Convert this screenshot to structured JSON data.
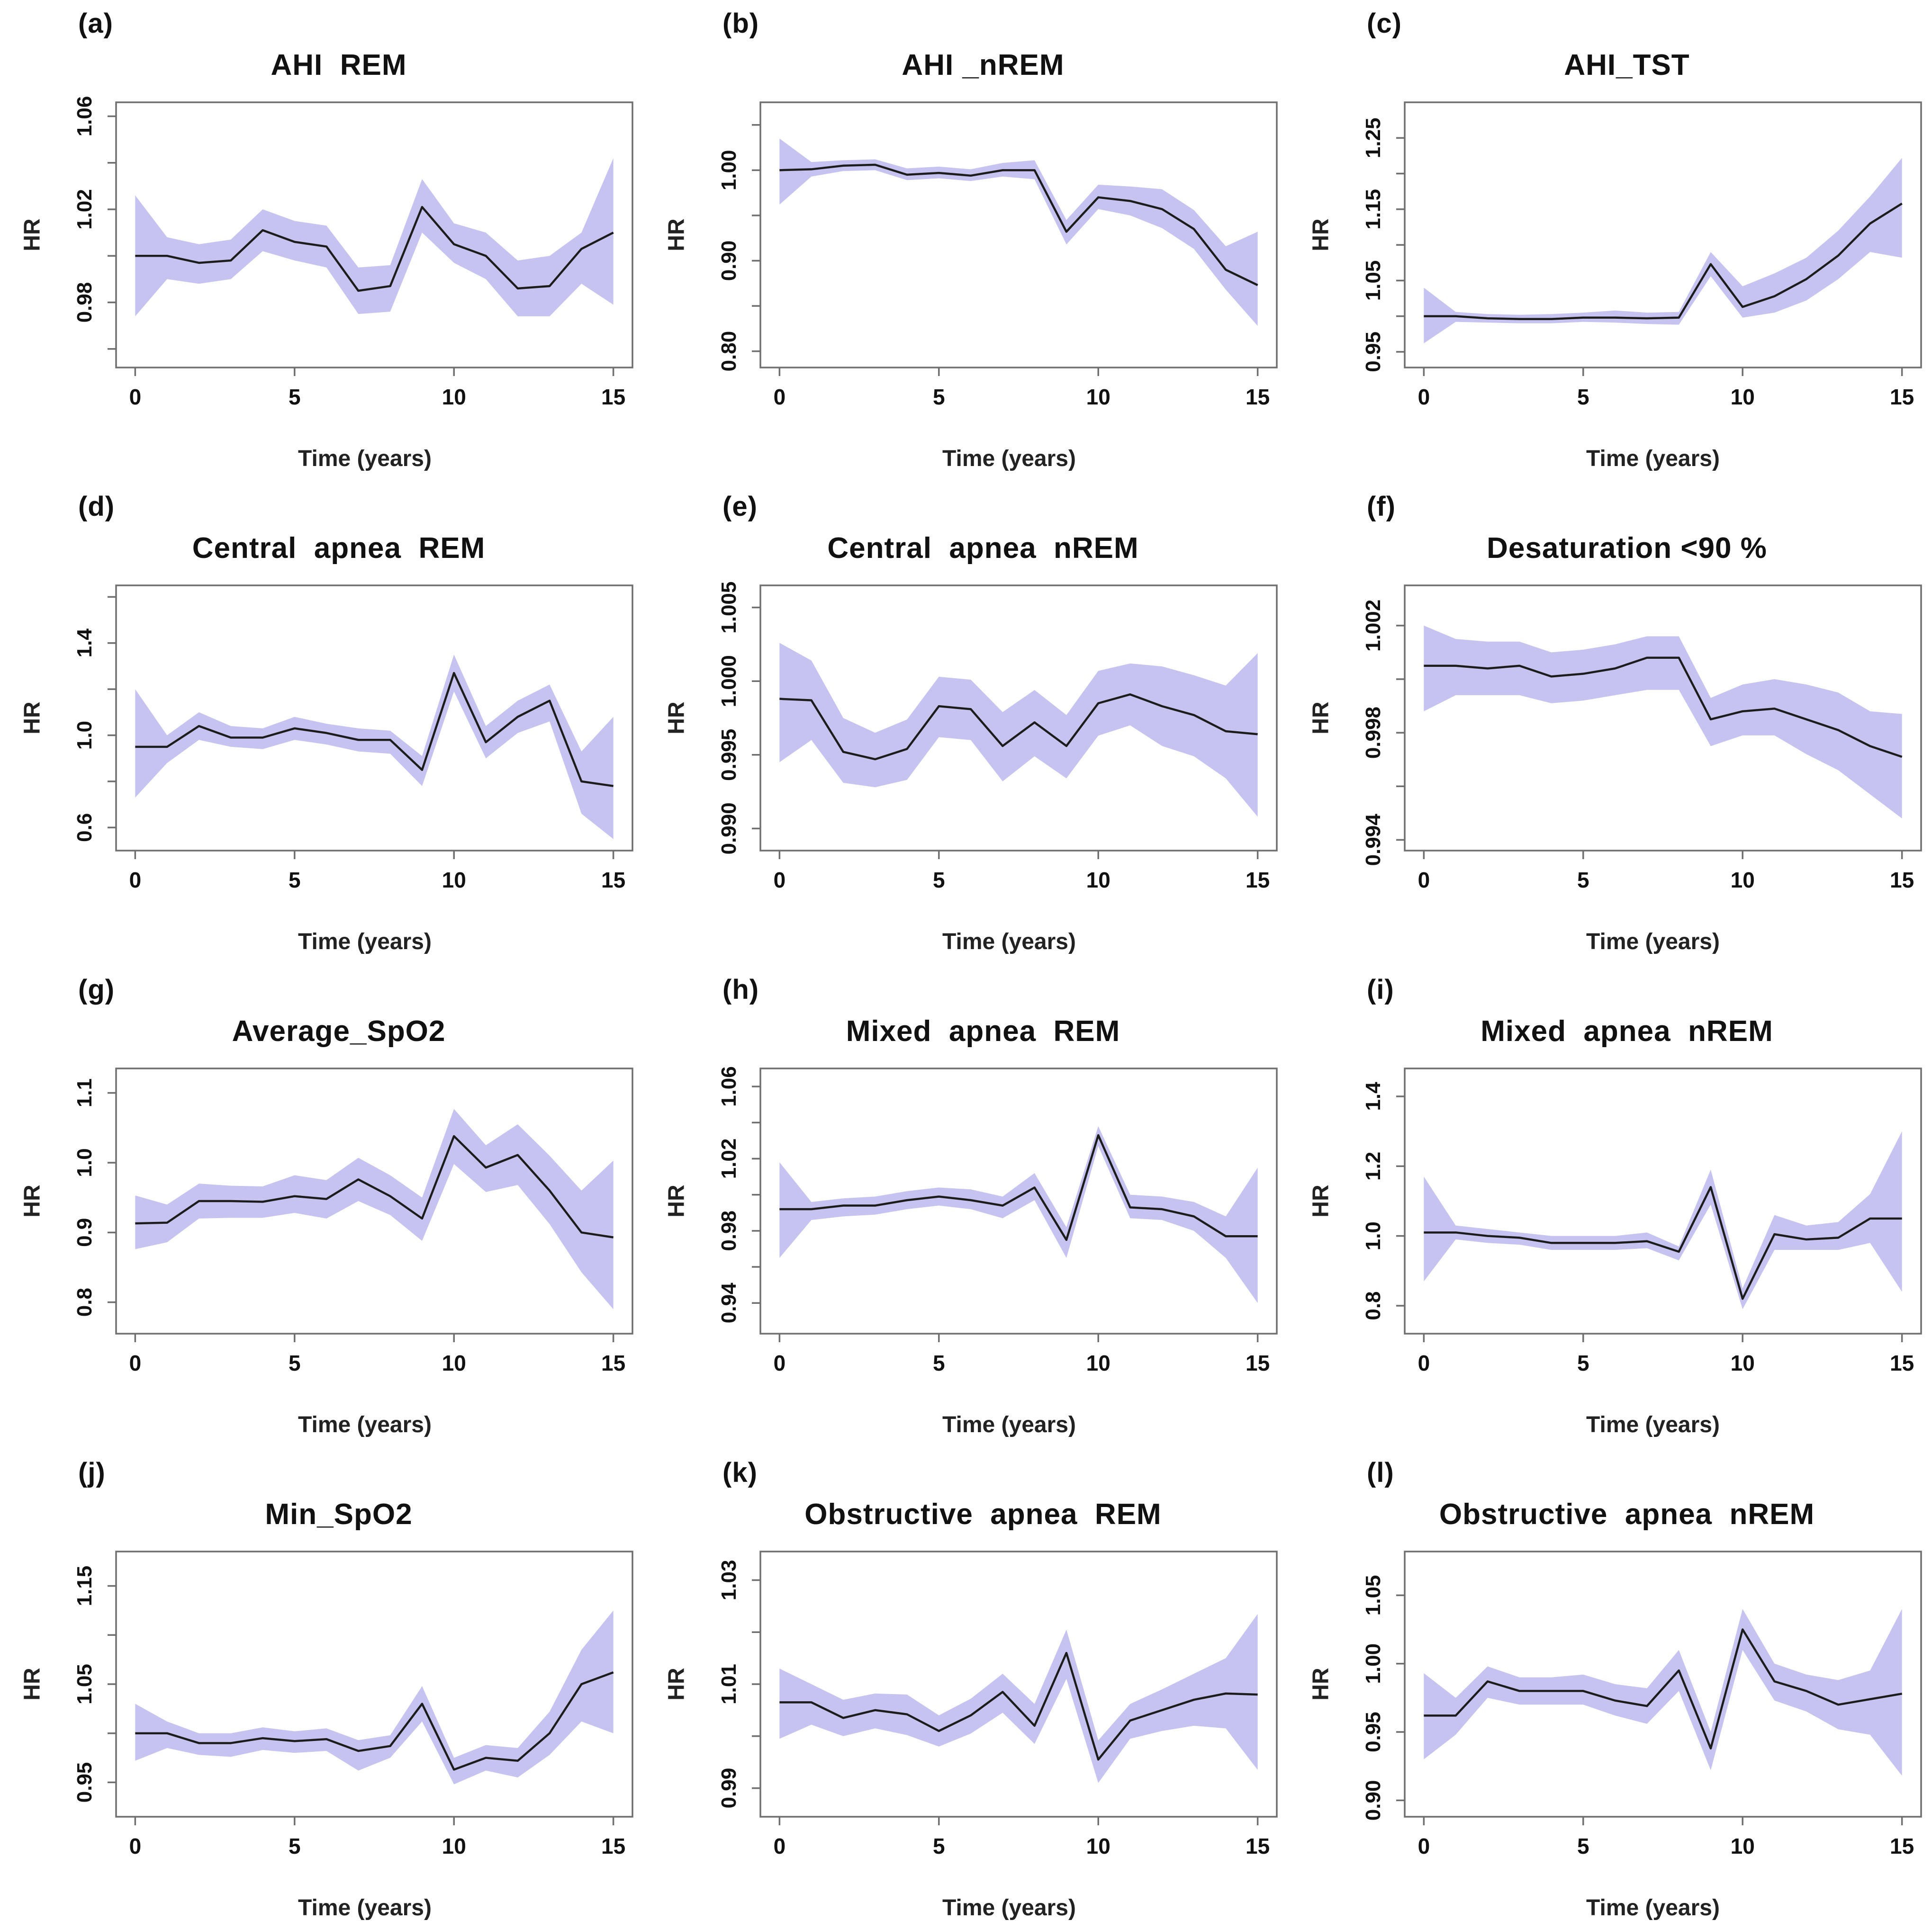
{
  "page": {
    "background": "#ffffff"
  },
  "colors": {
    "band": "#c6c3f0",
    "line": "#1c1c1c",
    "frame": "#6f6f6f",
    "tick_text": "#111111"
  },
  "axes_common": {
    "xlim": [
      -0.6,
      15.6
    ],
    "xticks": [
      0,
      5,
      10,
      15
    ],
    "xtick_labels": [
      "0",
      "5",
      "10",
      "15"
    ]
  },
  "chart_data": [
    {
      "type": "line",
      "panel_label": "(a)",
      "title": "AHI  REM",
      "xlabel": "Time (years)",
      "ylabel": "HR",
      "legend": "none",
      "grid": false,
      "x": [
        0,
        1,
        2,
        3,
        4,
        5,
        6,
        7,
        8,
        9,
        10,
        11,
        12,
        13,
        14,
        15
      ],
      "y": [
        1.0,
        1.0,
        0.997,
        0.998,
        1.011,
        1.006,
        1.004,
        0.985,
        0.987,
        1.021,
        1.005,
        1.0,
        0.986,
        0.987,
        1.003,
        1.01
      ],
      "upper": [
        1.026,
        1.008,
        1.005,
        1.007,
        1.02,
        1.015,
        1.013,
        0.995,
        0.996,
        1.033,
        1.014,
        1.01,
        0.998,
        1.0,
        1.01,
        1.042
      ],
      "lower": [
        0.974,
        0.99,
        0.988,
        0.99,
        1.002,
        0.998,
        0.995,
        0.975,
        0.976,
        1.01,
        0.997,
        0.99,
        0.974,
        0.974,
        0.988,
        0.979
      ],
      "ylim": [
        0.952,
        1.066
      ],
      "ytick_values": [
        0.98,
        1.02,
        1.06
      ],
      "ytick_labels": [
        "0.98",
        "1.02",
        "1.06"
      ],
      "yminor": [
        0.96,
        1.0,
        1.04
      ]
    },
    {
      "type": "line",
      "panel_label": "(b)",
      "title": "AHI _nREM",
      "xlabel": "Time (years)",
      "ylabel": "HR",
      "legend": "none",
      "grid": false,
      "x": [
        0,
        1,
        2,
        3,
        4,
        5,
        6,
        7,
        8,
        9,
        10,
        11,
        12,
        13,
        14,
        15
      ],
      "y": [
        1.0,
        1.001,
        1.005,
        1.006,
        0.995,
        0.997,
        0.994,
        1.0,
        1.0,
        0.932,
        0.97,
        0.966,
        0.957,
        0.935,
        0.89,
        0.873
      ],
      "upper": [
        1.035,
        1.009,
        1.011,
        1.012,
        1.002,
        1.004,
        1.001,
        1.008,
        1.011,
        0.945,
        0.984,
        0.982,
        0.979,
        0.956,
        0.916,
        0.932
      ],
      "lower": [
        0.962,
        0.993,
        0.999,
        1.0,
        0.989,
        0.991,
        0.988,
        0.993,
        0.99,
        0.918,
        0.957,
        0.95,
        0.936,
        0.913,
        0.868,
        0.828
      ],
      "ylim": [
        0.782,
        1.075
      ],
      "ytick_values": [
        0.8,
        0.9,
        1.0
      ],
      "ytick_labels": [
        "0.80",
        "0.90",
        "1.00"
      ],
      "yminor": [
        0.85,
        0.95,
        1.05
      ]
    },
    {
      "type": "line",
      "panel_label": "(c)",
      "title": "AHI_TST",
      "xlabel": "Time (years)",
      "ylabel": "HR",
      "legend": "none",
      "grid": false,
      "x": [
        0,
        1,
        2,
        3,
        4,
        5,
        6,
        7,
        8,
        9,
        10,
        11,
        12,
        13,
        14,
        15
      ],
      "y": [
        1.0,
        1.0,
        0.997,
        0.996,
        0.996,
        0.998,
        0.998,
        0.997,
        0.998,
        1.073,
        1.013,
        1.028,
        1.052,
        1.085,
        1.13,
        1.158
      ],
      "upper": [
        1.04,
        1.006,
        1.003,
        1.002,
        1.003,
        1.005,
        1.008,
        1.005,
        1.006,
        1.09,
        1.042,
        1.06,
        1.082,
        1.12,
        1.168,
        1.222
      ],
      "lower": [
        0.962,
        0.992,
        0.991,
        0.99,
        0.99,
        0.992,
        0.991,
        0.989,
        0.988,
        1.056,
        0.998,
        1.005,
        1.022,
        1.052,
        1.09,
        1.082
      ],
      "ylim": [
        0.928,
        1.3
      ],
      "ytick_values": [
        0.95,
        1.05,
        1.15,
        1.25
      ],
      "ytick_labels": [
        "0.95",
        "1.05",
        "1.15",
        "1.25"
      ],
      "yminor": [
        1.0,
        1.1,
        1.2
      ]
    },
    {
      "type": "line",
      "panel_label": "(d)",
      "title": "Central  apnea  REM",
      "xlabel": "Time (years)",
      "ylabel": "HR",
      "legend": "none",
      "grid": false,
      "x": [
        0,
        1,
        2,
        3,
        4,
        5,
        6,
        7,
        8,
        9,
        10,
        11,
        12,
        13,
        14,
        15
      ],
      "y": [
        0.95,
        0.95,
        1.04,
        0.99,
        0.99,
        1.03,
        1.01,
        0.98,
        0.98,
        0.85,
        1.27,
        0.97,
        1.08,
        1.15,
        0.8,
        0.78
      ],
      "upper": [
        1.2,
        1.0,
        1.1,
        1.04,
        1.03,
        1.08,
        1.05,
        1.03,
        1.02,
        0.91,
        1.35,
        1.04,
        1.15,
        1.22,
        0.93,
        1.08
      ],
      "lower": [
        0.73,
        0.88,
        0.98,
        0.95,
        0.94,
        0.98,
        0.96,
        0.93,
        0.92,
        0.78,
        1.19,
        0.9,
        1.01,
        1.06,
        0.66,
        0.55
      ],
      "ylim": [
        0.5,
        1.65
      ],
      "ytick_values": [
        0.6,
        1.0,
        1.4
      ],
      "ytick_labels": [
        "0.6",
        "1.0",
        "1.4"
      ],
      "yminor": [
        0.8,
        1.2,
        1.6
      ]
    },
    {
      "type": "line",
      "panel_label": "(e)",
      "title": "Central  apnea  nREM",
      "xlabel": "Time (years)",
      "ylabel": "HR",
      "legend": "none",
      "grid": false,
      "x": [
        0,
        1,
        2,
        3,
        4,
        5,
        6,
        7,
        8,
        9,
        10,
        11,
        12,
        13,
        14,
        15
      ],
      "y": [
        0.9988,
        0.9987,
        0.9952,
        0.9947,
        0.9954,
        0.9983,
        0.9981,
        0.9956,
        0.9972,
        0.9956,
        0.9985,
        0.9991,
        0.9983,
        0.9977,
        0.9966,
        0.9964
      ],
      "upper": [
        1.0026,
        1.0014,
        0.9975,
        0.9965,
        0.9974,
        1.0003,
        1.0001,
        0.9979,
        0.9994,
        0.9977,
        1.0007,
        1.0012,
        1.001,
        1.0004,
        0.9997,
        1.0019
      ],
      "lower": [
        0.9945,
        0.996,
        0.9931,
        0.9928,
        0.9933,
        0.9962,
        0.996,
        0.9932,
        0.9949,
        0.9934,
        0.9963,
        0.997,
        0.9956,
        0.9949,
        0.9934,
        0.9908
      ],
      "ylim": [
        0.9885,
        1.0065
      ],
      "ytick_values": [
        0.99,
        0.995,
        1.0,
        1.005
      ],
      "ytick_labels": [
        "0.990",
        "0.995",
        "1.000",
        "1.005"
      ],
      "yminor": []
    },
    {
      "type": "line",
      "panel_label": "(f)",
      "title": "Desaturation <90 %",
      "xlabel": "Time (years)",
      "ylabel": "HR",
      "legend": "none",
      "grid": false,
      "x": [
        0,
        1,
        2,
        3,
        4,
        5,
        6,
        7,
        8,
        9,
        10,
        11,
        12,
        13,
        14,
        15
      ],
      "y": [
        1.0005,
        1.0005,
        1.0004,
        1.0005,
        1.0001,
        1.0002,
        1.0004,
        1.0008,
        1.0008,
        0.9985,
        0.9988,
        0.9989,
        0.9985,
        0.9981,
        0.9975,
        0.9971
      ],
      "upper": [
        1.002,
        1.0015,
        1.0014,
        1.0014,
        1.001,
        1.0011,
        1.0013,
        1.0016,
        1.0016,
        0.9993,
        0.9998,
        1.0,
        0.9998,
        0.9995,
        0.9988,
        0.9987
      ],
      "lower": [
        0.9988,
        0.9994,
        0.9994,
        0.9994,
        0.9991,
        0.9992,
        0.9994,
        0.9996,
        0.9996,
        0.9975,
        0.9979,
        0.9979,
        0.9972,
        0.9966,
        0.9957,
        0.9948
      ],
      "ylim": [
        0.9936,
        1.0035
      ],
      "ytick_values": [
        0.994,
        0.998,
        1.002
      ],
      "ytick_labels": [
        "0.994",
        "0.998",
        "1.002"
      ],
      "yminor": [
        0.996,
        1.0
      ]
    },
    {
      "type": "line",
      "panel_label": "(g)",
      "title": "Average_SpO2",
      "xlabel": "Time (years)",
      "ylabel": "HR",
      "legend": "none",
      "grid": false,
      "x": [
        0,
        1,
        2,
        3,
        4,
        5,
        6,
        7,
        8,
        9,
        10,
        11,
        12,
        13,
        14,
        15
      ],
      "y": [
        0.913,
        0.914,
        0.945,
        0.945,
        0.944,
        0.952,
        0.948,
        0.976,
        0.952,
        0.92,
        1.038,
        0.993,
        1.011,
        0.96,
        0.9,
        0.893
      ],
      "upper": [
        0.953,
        0.94,
        0.97,
        0.967,
        0.966,
        0.982,
        0.975,
        1.007,
        0.982,
        0.95,
        1.077,
        1.025,
        1.055,
        1.01,
        0.96,
        1.003
      ],
      "lower": [
        0.876,
        0.886,
        0.92,
        0.921,
        0.921,
        0.928,
        0.92,
        0.945,
        0.925,
        0.888,
        0.998,
        0.958,
        0.968,
        0.912,
        0.843,
        0.79
      ],
      "ylim": [
        0.755,
        1.135
      ],
      "ytick_values": [
        0.8,
        0.9,
        1.0,
        1.1
      ],
      "ytick_labels": [
        "0.8",
        "0.9",
        "1.0",
        "1.1"
      ],
      "yminor": []
    },
    {
      "type": "line",
      "panel_label": "(h)",
      "title": "Mixed  apnea  REM",
      "xlabel": "Time (years)",
      "ylabel": "HR",
      "legend": "none",
      "grid": false,
      "x": [
        0,
        1,
        2,
        3,
        4,
        5,
        6,
        7,
        8,
        9,
        10,
        11,
        12,
        13,
        14,
        15
      ],
      "y": [
        0.992,
        0.992,
        0.994,
        0.994,
        0.997,
        0.999,
        0.997,
        0.994,
        1.004,
        0.975,
        1.033,
        0.993,
        0.992,
        0.988,
        0.977,
        0.977
      ],
      "upper": [
        1.018,
        0.996,
        0.998,
        0.999,
        1.002,
        1.004,
        1.003,
        0.999,
        1.012,
        0.982,
        1.038,
        1.0,
        0.999,
        0.996,
        0.988,
        1.015
      ],
      "lower": [
        0.965,
        0.986,
        0.988,
        0.989,
        0.992,
        0.994,
        0.992,
        0.987,
        0.997,
        0.965,
        1.027,
        0.987,
        0.986,
        0.98,
        0.965,
        0.94
      ],
      "ylim": [
        0.923,
        1.07
      ],
      "ytick_values": [
        0.94,
        0.98,
        1.02,
        1.06
      ],
      "ytick_labels": [
        "0.94",
        "0.98",
        "1.02",
        "1.06"
      ],
      "yminor": [
        0.96,
        1.0,
        1.04
      ]
    },
    {
      "type": "line",
      "panel_label": "(i)",
      "title": "Mixed  apnea  nREM",
      "xlabel": "Time (years)",
      "ylabel": "HR",
      "legend": "none",
      "grid": false,
      "x": [
        0,
        1,
        2,
        3,
        4,
        5,
        6,
        7,
        8,
        9,
        10,
        11,
        12,
        13,
        14,
        15
      ],
      "y": [
        1.01,
        1.01,
        1.0,
        0.995,
        0.98,
        0.98,
        0.98,
        0.985,
        0.955,
        1.14,
        0.82,
        1.005,
        0.99,
        0.995,
        1.05,
        1.05
      ],
      "upper": [
        1.17,
        1.03,
        1.02,
        1.01,
        1.0,
        1.0,
        1.0,
        1.01,
        0.97,
        1.19,
        0.85,
        1.06,
        1.03,
        1.04,
        1.12,
        1.3
      ],
      "lower": [
        0.87,
        0.99,
        0.98,
        0.975,
        0.96,
        0.96,
        0.96,
        0.965,
        0.93,
        1.09,
        0.79,
        0.96,
        0.96,
        0.96,
        0.98,
        0.84
      ],
      "ylim": [
        0.72,
        1.48
      ],
      "ytick_values": [
        0.8,
        1.0,
        1.2,
        1.4
      ],
      "ytick_labels": [
        "0.8",
        "1.0",
        "1.2",
        "1.4"
      ],
      "yminor": []
    },
    {
      "type": "line",
      "panel_label": "(j)",
      "title": "Min_SpO2",
      "xlabel": "Time (years)",
      "ylabel": "HR",
      "legend": "none",
      "grid": false,
      "x": [
        0,
        1,
        2,
        3,
        4,
        5,
        6,
        7,
        8,
        9,
        10,
        11,
        12,
        13,
        14,
        15
      ],
      "y": [
        1.0,
        1.0,
        0.99,
        0.99,
        0.995,
        0.992,
        0.994,
        0.982,
        0.987,
        1.03,
        0.963,
        0.975,
        0.972,
        1.0,
        1.05,
        1.062
      ],
      "upper": [
        1.03,
        1.012,
        1.0,
        1.0,
        1.006,
        1.002,
        1.005,
        0.993,
        0.998,
        1.048,
        0.975,
        0.988,
        0.985,
        1.022,
        1.085,
        1.125
      ],
      "lower": [
        0.972,
        0.985,
        0.978,
        0.976,
        0.983,
        0.98,
        0.982,
        0.962,
        0.975,
        1.012,
        0.948,
        0.962,
        0.955,
        0.978,
        1.012,
        1.0
      ],
      "ylim": [
        0.915,
        1.185
      ],
      "ytick_values": [
        0.95,
        1.05,
        1.15
      ],
      "ytick_labels": [
        "0.95",
        "1.05",
        "1.15"
      ],
      "yminor": [
        1.0,
        1.1
      ]
    },
    {
      "type": "line",
      "panel_label": "(k)",
      "title": "Obstructive  apnea  REM",
      "xlabel": "Time (years)",
      "ylabel": "HR",
      "legend": "none",
      "grid": false,
      "x": [
        0,
        1,
        2,
        3,
        4,
        5,
        6,
        7,
        8,
        9,
        10,
        11,
        12,
        13,
        14,
        15
      ],
      "y": [
        1.0065,
        1.0065,
        1.0035,
        1.005,
        1.0042,
        1.001,
        1.004,
        1.0085,
        1.002,
        1.016,
        0.9955,
        1.003,
        1.005,
        1.007,
        1.0082,
        1.008
      ],
      "upper": [
        1.013,
        1.01,
        1.007,
        1.0082,
        1.008,
        1.004,
        1.0072,
        1.012,
        1.0062,
        1.0205,
        0.9992,
        1.0062,
        1.009,
        1.012,
        1.015,
        1.0235
      ],
      "lower": [
        0.9995,
        1.0022,
        1.0,
        1.0015,
        1.0002,
        0.998,
        1.0005,
        1.0045,
        0.9985,
        1.011,
        0.991,
        0.9995,
        1.001,
        1.002,
        1.0015,
        0.9935
      ],
      "ylim": [
        0.9845,
        1.0355
      ],
      "ytick_values": [
        0.99,
        1.01,
        1.03
      ],
      "ytick_labels": [
        "0.99",
        "1.01",
        "1.03"
      ],
      "yminor": [
        1.0,
        1.02
      ]
    },
    {
      "type": "line",
      "panel_label": "(l)",
      "title": "Obstructive  apnea  nREM",
      "xlabel": "Time (years)",
      "ylabel": "HR",
      "legend": "none",
      "grid": false,
      "x": [
        0,
        1,
        2,
        3,
        4,
        5,
        6,
        7,
        8,
        9,
        10,
        11,
        12,
        13,
        14,
        15
      ],
      "y": [
        0.962,
        0.962,
        0.987,
        0.98,
        0.98,
        0.98,
        0.973,
        0.969,
        0.995,
        0.938,
        1.025,
        0.987,
        0.98,
        0.97,
        0.974,
        0.978
      ],
      "upper": [
        0.993,
        0.975,
        0.998,
        0.99,
        0.99,
        0.992,
        0.985,
        0.982,
        1.01,
        0.95,
        1.04,
        1.0,
        0.992,
        0.988,
        0.995,
        1.04
      ],
      "lower": [
        0.93,
        0.948,
        0.975,
        0.97,
        0.97,
        0.97,
        0.962,
        0.956,
        0.98,
        0.922,
        1.01,
        0.973,
        0.965,
        0.952,
        0.948,
        0.918
      ],
      "ylim": [
        0.888,
        1.082
      ],
      "ytick_values": [
        0.9,
        0.95,
        1.0,
        1.05
      ],
      "ytick_labels": [
        "0.90",
        "0.95",
        "1.00",
        "1.05"
      ],
      "yminor": []
    }
  ]
}
